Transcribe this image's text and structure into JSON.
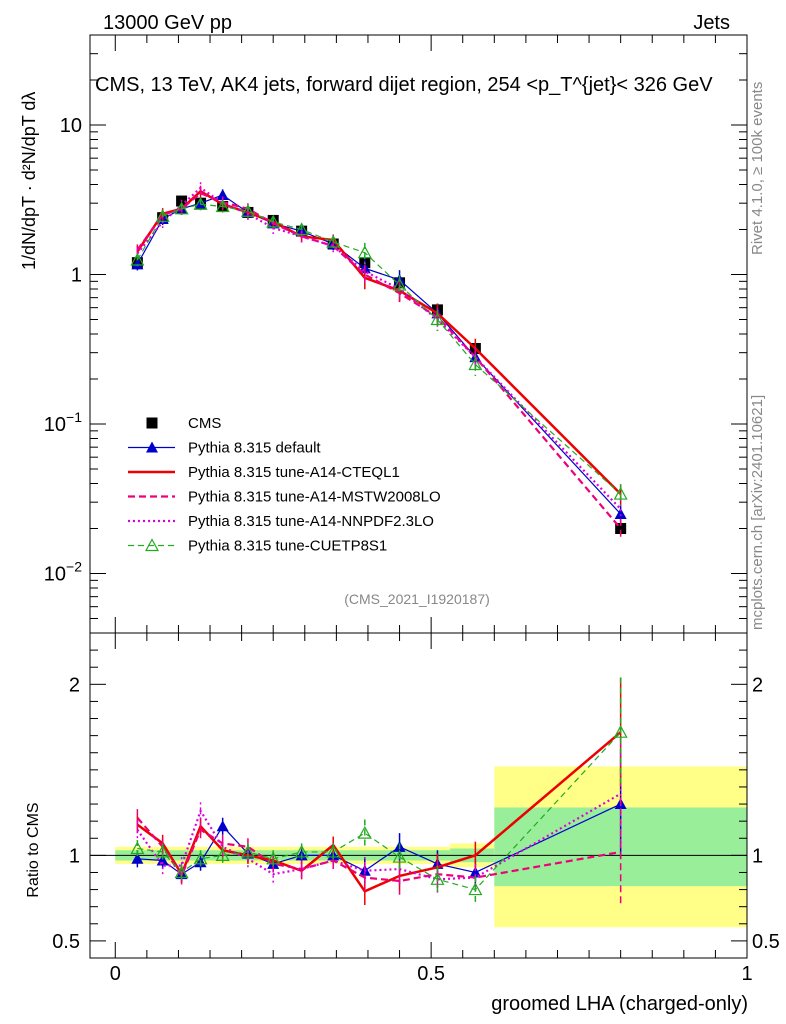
{
  "header": {
    "left": "13000 GeV pp",
    "right": "Jets"
  },
  "side": {
    "rivet": "Rivet 4.1.0, ≥ 100k events",
    "mcplots": "mcplots.cern.ch [arXiv:2401.10621]"
  },
  "watermark": "(CMS_2021_I1920187)",
  "colors": {
    "cms": "#000000",
    "default": "#0000cc",
    "cteql1": "#ee0000",
    "mstw": "#ee0077",
    "nnpdf": "#dd00dd",
    "cuetp": "#22aa22",
    "band_outer": "#ffff88",
    "band_inner": "#99ee99"
  },
  "chart_data": [
    {
      "type": "line",
      "title": "CMS, 13 TeV, AK4 jets, forward dijet region, 254 <p_T^{jet}< 326 GeV",
      "ylabel": "1/dN/dpT · d²N/dpT dλ",
      "yscale": "log",
      "ylim": [
        0.004,
        40
      ],
      "xlim": [
        -0.04,
        1.0
      ],
      "ytick_labels": [
        "10^-2",
        "10^-1",
        "1",
        "10"
      ],
      "x": [
        0.035,
        0.075,
        0.105,
        0.135,
        0.17,
        0.21,
        0.25,
        0.295,
        0.345,
        0.395,
        0.45,
        0.51,
        0.57,
        0.8
      ],
      "series": [
        {
          "name": "CMS",
          "values": [
            1.2,
            2.4,
            3.1,
            3.0,
            2.85,
            2.6,
            2.3,
            1.95,
            1.6,
            1.2,
            0.88,
            0.58,
            0.32,
            0.02
          ]
        },
        {
          "name": "Pythia 8.315 default",
          "values": [
            1.17,
            2.35,
            2.75,
            3.0,
            3.4,
            2.6,
            2.2,
            1.95,
            1.6,
            1.1,
            0.92,
            0.55,
            0.28,
            0.025
          ]
        },
        {
          "name": "Pythia 8.315 tune-A14-CTEQL1",
          "values": [
            1.42,
            2.55,
            2.75,
            3.6,
            2.95,
            2.6,
            2.25,
            1.8,
            1.7,
            0.95,
            0.78,
            0.55,
            0.32,
            0.034
          ]
        },
        {
          "name": "Pythia 8.315 tune-A14-MSTW2008LO",
          "values": [
            1.46,
            2.5,
            2.75,
            3.5,
            3.05,
            2.75,
            2.2,
            1.8,
            1.55,
            1.0,
            0.75,
            0.52,
            0.28,
            0.02
          ]
        },
        {
          "name": "Pythia 8.315 tune-A14-NNPDF2.3LO",
          "values": [
            1.38,
            2.25,
            2.9,
            3.8,
            3.0,
            2.55,
            2.05,
            1.8,
            1.55,
            1.05,
            0.8,
            0.5,
            0.28,
            0.027
          ]
        },
        {
          "name": "Pythia 8.315 tune-CUETP8S1",
          "values": [
            1.25,
            2.45,
            2.75,
            2.95,
            2.85,
            2.65,
            2.25,
            2.0,
            1.65,
            1.4,
            0.85,
            0.5,
            0.25,
            0.034
          ]
        }
      ],
      "legend": "center-left"
    },
    {
      "type": "line",
      "ylabel": "Ratio to CMS",
      "xlabel": "groomed LHA (charged-only)",
      "ylim": [
        0.4,
        2.3
      ],
      "xlim": [
        -0.04,
        1.0
      ],
      "ytick_labels": [
        "0.5",
        "1",
        "2"
      ],
      "xtick_labels": [
        "0",
        "0.5",
        "1"
      ],
      "x": [
        0.035,
        0.075,
        0.105,
        0.135,
        0.17,
        0.21,
        0.25,
        0.295,
        0.345,
        0.395,
        0.45,
        0.51,
        0.57,
        0.8
      ],
      "series": [
        {
          "name": "Pythia 8.315 default",
          "values": [
            0.98,
            0.97,
            0.89,
            0.96,
            1.17,
            1.01,
            0.95,
            1.0,
            1.0,
            0.91,
            1.05,
            0.95,
            0.9,
            1.3
          ]
        },
        {
          "name": "Pythia 8.315 tune-A14-CTEQL1",
          "values": [
            1.18,
            1.07,
            0.89,
            1.17,
            1.03,
            1.0,
            0.97,
            0.91,
            1.06,
            0.79,
            0.88,
            0.93,
            1.0,
            1.72
          ]
        },
        {
          "name": "Pythia 8.315 tune-A14-MSTW2008LO",
          "values": [
            1.22,
            1.05,
            0.88,
            1.15,
            1.07,
            1.05,
            0.95,
            0.92,
            0.97,
            0.87,
            0.85,
            0.89,
            0.87,
            1.02
          ]
        },
        {
          "name": "Pythia 8.315 tune-A14-NNPDF2.3LO",
          "values": [
            1.15,
            0.94,
            0.94,
            1.26,
            1.05,
            0.98,
            0.89,
            0.92,
            0.97,
            0.91,
            0.92,
            0.86,
            0.87,
            1.36
          ]
        },
        {
          "name": "Pythia 8.315 tune-CUETP8S1",
          "values": [
            1.04,
            1.02,
            0.9,
            0.98,
            1.0,
            1.02,
            0.98,
            1.02,
            1.02,
            1.13,
            0.99,
            0.86,
            0.8,
            1.72
          ]
        }
      ],
      "bands": [
        {
          "x0": 0.0,
          "x1": 0.53,
          "outer": [
            0.95,
            1.05
          ],
          "inner": [
            0.97,
            1.03
          ]
        },
        {
          "x0": 0.53,
          "x1": 0.6,
          "outer": [
            0.93,
            1.07
          ],
          "inner": [
            0.96,
            1.04
          ]
        },
        {
          "x0": 0.6,
          "x1": 1.0,
          "outer": [
            0.58,
            1.52
          ],
          "inner": [
            0.82,
            1.28
          ]
        }
      ]
    }
  ]
}
